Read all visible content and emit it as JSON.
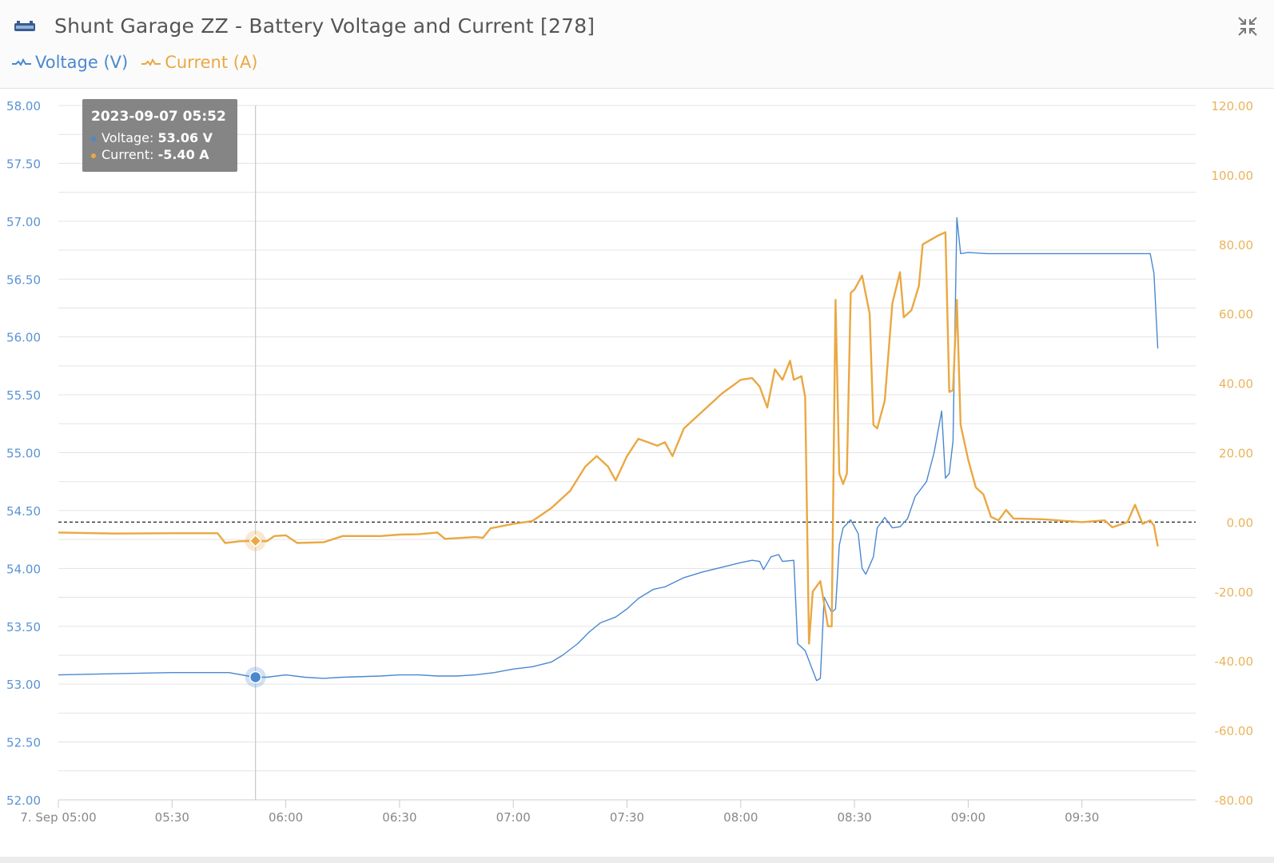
{
  "header": {
    "title": "Shunt Garage ZZ - Battery Voltage and Current [278]",
    "device_icon": "battery-shunt-icon",
    "collapse_icon": "collapse-arrows-icon"
  },
  "legend": {
    "voltage_label": "Voltage (V)",
    "current_label": "Current (A)"
  },
  "tooltip": {
    "datetime": "2023-09-07 05:52",
    "voltage_label": "Voltage:",
    "voltage_value": "53.06 V",
    "current_label": "Current:",
    "current_value": "-5.40 A"
  },
  "colors": {
    "voltage": "#4a88d0",
    "current": "#eaa843",
    "axis_text_left": "#5a93d3",
    "axis_text_right": "#eab35c",
    "grid": "#e3e3e3"
  },
  "chart_data": {
    "type": "line",
    "x_type": "datetime",
    "x_ticks": [
      "7. Sep 05:00",
      "05:30",
      "06:00",
      "06:30",
      "07:00",
      "07:30",
      "08:00",
      "08:30",
      "09:00",
      "09:30"
    ],
    "x_range": [
      "2023-09-07 05:00",
      "2023-09-07 10:00"
    ],
    "y_left": {
      "label": "Voltage (V)",
      "range": [
        52.0,
        58.0
      ],
      "ticks": [
        "58.00",
        "57.50",
        "57.00",
        "56.50",
        "56.00",
        "55.50",
        "55.00",
        "54.50",
        "54.00",
        "53.50",
        "53.00",
        "52.50",
        "52.00"
      ]
    },
    "y_right": {
      "label": "Current (A)",
      "range": [
        -80,
        120
      ],
      "ticks": [
        "120.00",
        "100.00",
        "80.00",
        "60.00",
        "40.00",
        "20.00",
        "0.00",
        "-20.00",
        "-40.00",
        "-60.00",
        "-80.00"
      ]
    },
    "reference_line": {
      "axis": "right",
      "value": 0,
      "style": "dashed"
    },
    "crosshair_time": "05:52",
    "grid": true,
    "legend_position": "top-left",
    "series": [
      {
        "name": "Voltage (V)",
        "axis": "left",
        "points": [
          [
            "05:00",
            53.08
          ],
          [
            "05:15",
            53.09
          ],
          [
            "05:30",
            53.1
          ],
          [
            "05:45",
            53.1
          ],
          [
            "05:50",
            53.07
          ],
          [
            "05:52",
            53.06
          ],
          [
            "05:55",
            53.06
          ],
          [
            "06:00",
            53.08
          ],
          [
            "06:05",
            53.06
          ],
          [
            "06:10",
            53.05
          ],
          [
            "06:15",
            53.06
          ],
          [
            "06:25",
            53.07
          ],
          [
            "06:30",
            53.08
          ],
          [
            "06:35",
            53.08
          ],
          [
            "06:40",
            53.07
          ],
          [
            "06:45",
            53.07
          ],
          [
            "06:50",
            53.08
          ],
          [
            "06:55",
            53.1
          ],
          [
            "07:00",
            53.13
          ],
          [
            "07:05",
            53.15
          ],
          [
            "07:10",
            53.19
          ],
          [
            "07:13",
            53.25
          ],
          [
            "07:17",
            53.35
          ],
          [
            "07:20",
            53.45
          ],
          [
            "07:23",
            53.53
          ],
          [
            "07:27",
            53.58
          ],
          [
            "07:30",
            53.65
          ],
          [
            "07:33",
            53.74
          ],
          [
            "07:37",
            53.82
          ],
          [
            "07:40",
            53.84
          ],
          [
            "07:45",
            53.92
          ],
          [
            "07:50",
            53.97
          ],
          [
            "07:55",
            54.01
          ],
          [
            "08:00",
            54.05
          ],
          [
            "08:03",
            54.07
          ],
          [
            "08:05",
            54.06
          ],
          [
            "08:06",
            53.99
          ],
          [
            "08:08",
            54.1
          ],
          [
            "08:10",
            54.12
          ],
          [
            "08:11",
            54.06
          ],
          [
            "08:14",
            54.07
          ],
          [
            "08:15",
            53.35
          ],
          [
            "08:17",
            53.29
          ],
          [
            "08:20",
            53.03
          ],
          [
            "08:21",
            53.05
          ],
          [
            "08:22",
            53.75
          ],
          [
            "08:24",
            53.62
          ],
          [
            "08:25",
            53.65
          ],
          [
            "08:26",
            54.2
          ],
          [
            "08:27",
            54.35
          ],
          [
            "08:29",
            54.42
          ],
          [
            "08:31",
            54.3
          ],
          [
            "08:32",
            54.0
          ],
          [
            "08:33",
            53.95
          ],
          [
            "08:35",
            54.1
          ],
          [
            "08:36",
            54.35
          ],
          [
            "08:38",
            54.44
          ],
          [
            "08:40",
            54.35
          ],
          [
            "08:42",
            54.36
          ],
          [
            "08:44",
            54.43
          ],
          [
            "08:46",
            54.62
          ],
          [
            "08:49",
            54.75
          ],
          [
            "08:51",
            55.0
          ],
          [
            "08:53",
            55.36
          ],
          [
            "08:54",
            54.78
          ],
          [
            "08:55",
            54.82
          ],
          [
            "08:56",
            55.1
          ],
          [
            "08:57",
            57.03
          ],
          [
            "08:58",
            56.72
          ],
          [
            "09:00",
            56.73
          ],
          [
            "09:05",
            56.72
          ],
          [
            "09:10",
            56.72
          ],
          [
            "09:20",
            56.72
          ],
          [
            "09:30",
            56.72
          ],
          [
            "09:40",
            56.72
          ],
          [
            "09:48",
            56.72
          ],
          [
            "09:49",
            56.55
          ],
          [
            "09:50",
            55.9
          ]
        ]
      },
      {
        "name": "Current (A)",
        "axis": "right",
        "points": [
          [
            "05:00",
            -3.0
          ],
          [
            "05:15",
            -3.3
          ],
          [
            "05:30",
            -3.2
          ],
          [
            "05:42",
            -3.2
          ],
          [
            "05:44",
            -6.0
          ],
          [
            "05:48",
            -5.5
          ],
          [
            "05:52",
            -5.4
          ],
          [
            "05:55",
            -5.5
          ],
          [
            "05:57",
            -4.0
          ],
          [
            "06:00",
            -3.8
          ],
          [
            "06:03",
            -6.0
          ],
          [
            "06:10",
            -5.8
          ],
          [
            "06:15",
            -4.0
          ],
          [
            "06:25",
            -4.0
          ],
          [
            "06:30",
            -3.6
          ],
          [
            "06:35",
            -3.5
          ],
          [
            "06:40",
            -3.0
          ],
          [
            "06:42",
            -4.8
          ],
          [
            "06:50",
            -4.3
          ],
          [
            "06:52",
            -4.5
          ],
          [
            "06:54",
            -1.8
          ],
          [
            "07:00",
            -0.5
          ],
          [
            "07:05",
            0.3
          ],
          [
            "07:10",
            4.0
          ],
          [
            "07:15",
            9.0
          ],
          [
            "07:19",
            16.0
          ],
          [
            "07:22",
            19.0
          ],
          [
            "07:25",
            16.0
          ],
          [
            "07:27",
            12.0
          ],
          [
            "07:30",
            19.0
          ],
          [
            "07:33",
            24.0
          ],
          [
            "07:38",
            22.0
          ],
          [
            "07:40",
            23.0
          ],
          [
            "07:42",
            19.0
          ],
          [
            "07:45",
            27.0
          ],
          [
            "07:50",
            32.0
          ],
          [
            "07:55",
            37.0
          ],
          [
            "08:00",
            41.0
          ],
          [
            "08:03",
            41.5
          ],
          [
            "08:05",
            39.0
          ],
          [
            "08:07",
            33.0
          ],
          [
            "08:09",
            44.0
          ],
          [
            "08:11",
            41.0
          ],
          [
            "08:13",
            46.5
          ],
          [
            "08:14",
            41.0
          ],
          [
            "08:16",
            42.0
          ],
          [
            "08:17",
            36.0
          ],
          [
            "08:18",
            -35.0
          ],
          [
            "08:19",
            -20.0
          ],
          [
            "08:21",
            -17.0
          ],
          [
            "08:23",
            -30.0
          ],
          [
            "08:24",
            -30.0
          ],
          [
            "08:25",
            64.0
          ],
          [
            "08:26",
            14.0
          ],
          [
            "08:27",
            11.0
          ],
          [
            "08:28",
            14.0
          ],
          [
            "08:29",
            66.0
          ],
          [
            "08:30",
            67.0
          ],
          [
            "08:32",
            71.0
          ],
          [
            "08:34",
            60.0
          ],
          [
            "08:35",
            28.0
          ],
          [
            "08:36",
            27.0
          ],
          [
            "08:38",
            35.0
          ],
          [
            "08:40",
            63.0
          ],
          [
            "08:42",
            72.0
          ],
          [
            "08:43",
            59.0
          ],
          [
            "08:45",
            61.0
          ],
          [
            "08:47",
            68.0
          ],
          [
            "08:48",
            80.0
          ],
          [
            "08:52",
            82.5
          ],
          [
            "08:54",
            83.5
          ],
          [
            "08:55",
            37.5
          ],
          [
            "08:56",
            38.0
          ],
          [
            "08:57",
            64.0
          ],
          [
            "08:58",
            28.0
          ],
          [
            "09:00",
            18.0
          ],
          [
            "09:02",
            10.0
          ],
          [
            "09:04",
            8.0
          ],
          [
            "09:06",
            1.5
          ],
          [
            "09:08",
            0.5
          ],
          [
            "09:10",
            3.5
          ],
          [
            "09:12",
            1.0
          ],
          [
            "09:14",
            1.0
          ],
          [
            "09:20",
            0.8
          ],
          [
            "09:30",
            0.0
          ],
          [
            "09:36",
            0.5
          ],
          [
            "09:38",
            -1.5
          ],
          [
            "09:42",
            0.0
          ],
          [
            "09:44",
            5.0
          ],
          [
            "09:46",
            -0.5
          ],
          [
            "09:48",
            0.5
          ],
          [
            "09:49",
            -1.0
          ],
          [
            "09:50",
            -7.0
          ]
        ]
      }
    ]
  }
}
